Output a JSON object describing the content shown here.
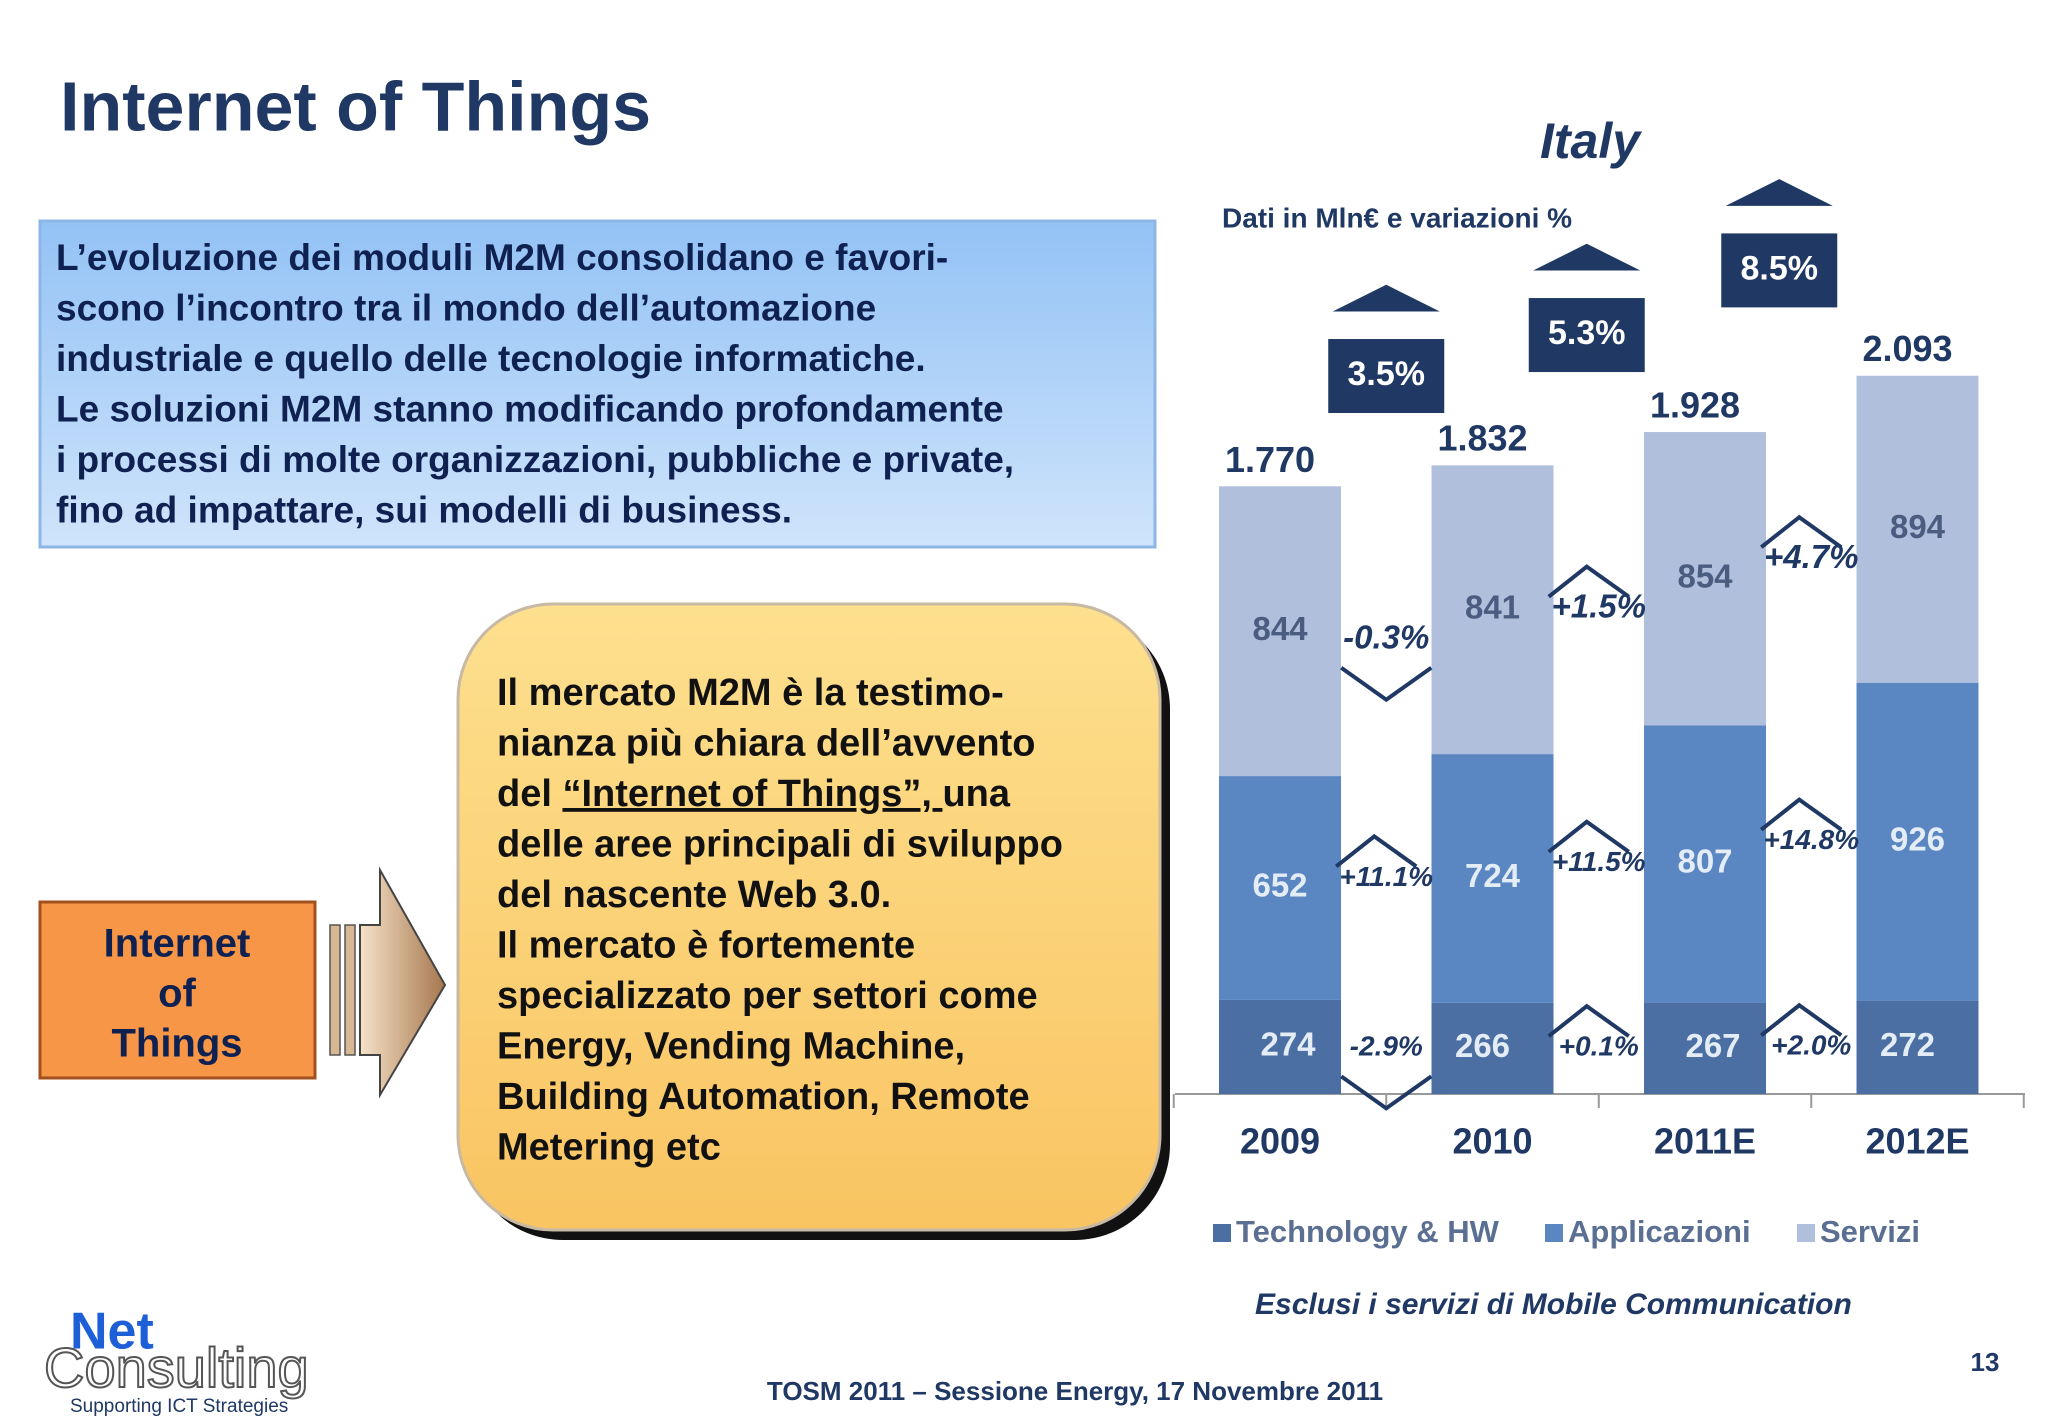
{
  "title": "Internet of Things",
  "intro": {
    "lines": [
      "L’evoluzione dei moduli M2M consolidano e favori-",
      "scono l’incontro tra il mondo dell’automazione",
      "industriale e quello delle tecnologie informatiche.",
      "Le soluzioni M2M stanno modificando profondamente",
      "i processi di molte organizzazioni, pubbliche e private,",
      "fino ad impattare, sui modelli di business."
    ]
  },
  "callout": {
    "lines": [
      "Il mercato M2M è la testimo-",
      "nianza più chiara dell’avvento",
      {
        "before": "del ",
        "link": "“Internet of Things”, ",
        "after": "una"
      },
      "delle aree principali di sviluppo",
      "del nascente Web 3.0.",
      "Il mercato è fortemente",
      "specializzato per settori come",
      "Energy, Vending Machine,",
      "Building Automation, Remote",
      "Metering etc"
    ]
  },
  "label_box": {
    "lines": [
      "Internet",
      "of",
      "Things"
    ]
  },
  "chart_data": {
    "type": "stacked_bar",
    "title": "Italy",
    "subtitle": "Dati in Mln€ e variazioni %",
    "categories": [
      "2009",
      "2010",
      "2011E",
      "2012E"
    ],
    "ylim": [
      0,
      2400
    ],
    "series": [
      {
        "name": "Technology & HW",
        "color": "#4c6fa3",
        "values": [
          274,
          266,
          267,
          272
        ],
        "changes": {
          "values": [
            -2.9,
            0.1,
            2.0
          ],
          "value_labels": [
            "-2.9%",
            "+0.1%",
            "+2.0%"
          ]
        }
      },
      {
        "name": "Applicazioni",
        "color": "#5a86c2",
        "values": [
          652,
          724,
          807,
          926
        ],
        "changes": {
          "values": [
            11.1,
            11.5,
            14.8
          ],
          "value_labels": [
            "+11.1%",
            "+11.5%",
            "+14.8%"
          ]
        }
      },
      {
        "name": "Servizi",
        "color": "#b0bfdc",
        "values": [
          844,
          841,
          854,
          894
        ],
        "changes": {
          "values": [
            -0.3,
            1.5,
            4.7
          ],
          "value_labels": [
            "-0.3%",
            "+1.5%",
            "+4.7%"
          ]
        }
      }
    ],
    "totals": {
      "values": [
        1770,
        1832,
        1928,
        2093
      ],
      "value_labels": [
        "1.770",
        "1.832",
        "1.928",
        "2.093"
      ]
    },
    "growth": {
      "values": [
        3.5,
        5.3,
        8.5
      ],
      "value_labels": [
        "3.5%",
        "5.3%",
        "8.5%"
      ]
    },
    "note": "Esclusi i servizi di  Mobile Communication"
  },
  "logo": {
    "name_top": "Net",
    "name_bottom": "Consulting",
    "tagline": "Supporting ICT Strategies"
  },
  "footer": "TOSM 2011 – Sessione Energy, 17 Novembre 2011",
  "page_number": "13"
}
